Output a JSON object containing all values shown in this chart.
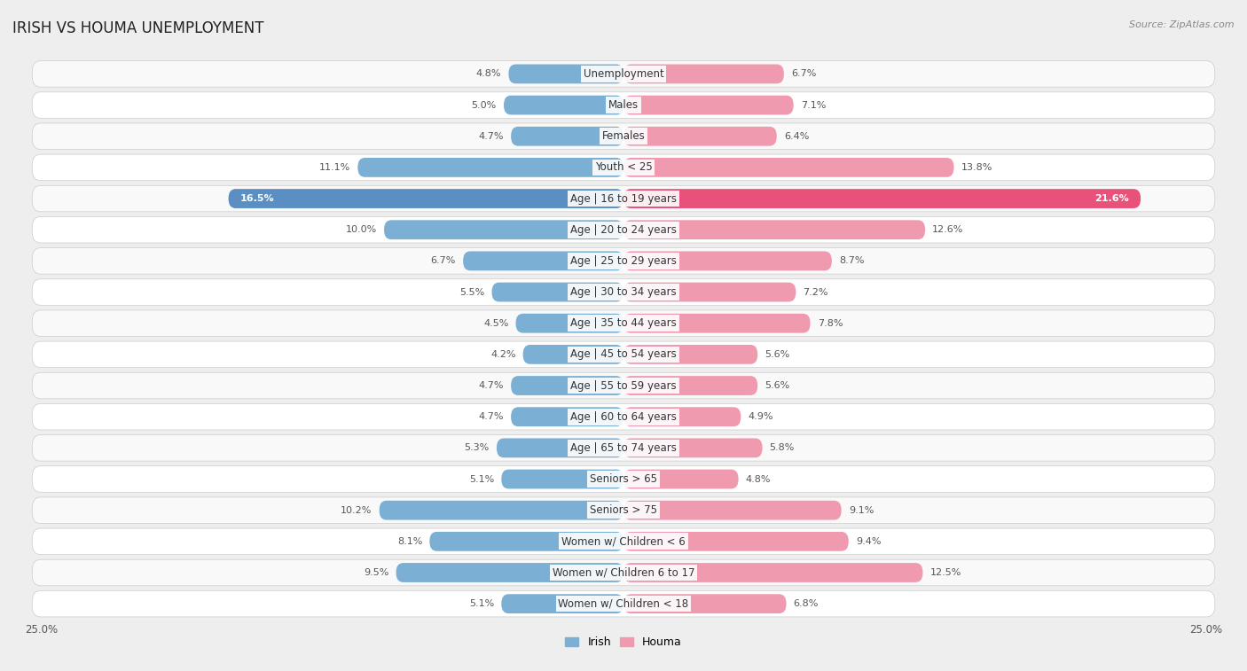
{
  "title": "IRISH VS HOUMA UNEMPLOYMENT",
  "source": "Source: ZipAtlas.com",
  "categories": [
    "Unemployment",
    "Males",
    "Females",
    "Youth < 25",
    "Age | 16 to 19 years",
    "Age | 20 to 24 years",
    "Age | 25 to 29 years",
    "Age | 30 to 34 years",
    "Age | 35 to 44 years",
    "Age | 45 to 54 years",
    "Age | 55 to 59 years",
    "Age | 60 to 64 years",
    "Age | 65 to 74 years",
    "Seniors > 65",
    "Seniors > 75",
    "Women w/ Children < 6",
    "Women w/ Children 6 to 17",
    "Women w/ Children < 18"
  ],
  "irish_values": [
    4.8,
    5.0,
    4.7,
    11.1,
    16.5,
    10.0,
    6.7,
    5.5,
    4.5,
    4.2,
    4.7,
    4.7,
    5.3,
    5.1,
    10.2,
    8.1,
    9.5,
    5.1
  ],
  "houma_values": [
    6.7,
    7.1,
    6.4,
    13.8,
    21.6,
    12.6,
    8.7,
    7.2,
    7.8,
    5.6,
    5.6,
    4.9,
    5.8,
    4.8,
    9.1,
    9.4,
    12.5,
    6.8
  ],
  "irish_color": "#7bafd4",
  "houma_color": "#f09ab0",
  "irish_highlight_color": "#5b8fc4",
  "houma_highlight_color": "#e8527a",
  "highlight_row": 4,
  "axis_limit": 25.0,
  "background_color": "#eeeeee",
  "row_color_even": "#f9f9f9",
  "row_color_odd": "#ffffff",
  "legend_irish": "Irish",
  "legend_houma": "Houma",
  "title_fontsize": 12,
  "label_fontsize": 8.5,
  "value_fontsize": 8.0
}
